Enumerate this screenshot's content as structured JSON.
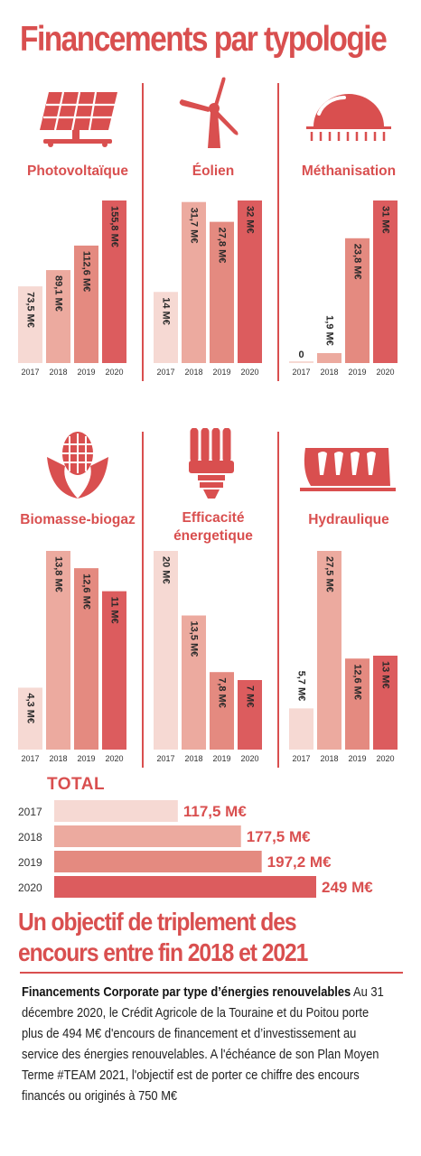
{
  "title": "Financements par typologie",
  "colors": {
    "accent": "#d94f4f",
    "year_colors": [
      "#f6d9d3",
      "#ecaa9f",
      "#e48a80",
      "#dc5c5e"
    ],
    "value_text": "#2a2a2a"
  },
  "panels": [
    {
      "label": "Photovoltaïque",
      "icon": "solar-panel-icon"
    },
    {
      "label": "Éolien",
      "icon": "wind-turbine-icon"
    },
    {
      "label": "Méthanisation",
      "icon": "methanizer-dome-icon"
    },
    {
      "label": "Biomasse-biogaz",
      "icon": "biomass-corn-icon"
    },
    {
      "label": "Efficacité énergetique",
      "icon": "energy-saving-bulb-icon"
    },
    {
      "label": "Hydraulique",
      "icon": "hydraulic-dam-icon"
    }
  ],
  "total": {
    "title": "TOTAL"
  },
  "headline": "Un objectif de triplement des encours entre fin 2018 et 2021",
  "body": {
    "lead": "Financements Corporate par type d’énergies renouvelables",
    "text": " Au 31 décembre 2020, le Crédit Agricole de la Touraine et du Poitou porte plus de 494 M€ d'encours de financement et d’investissement au service des énergies renouvelables.  A l'échéance de son Plan Moyen Terme #TEAM 2021, l'objectif est de porter ce chiffre des encours financés ou originés à 750 M€"
  },
  "chart_data": [
    {
      "type": "bar",
      "title": "Photovoltaïque",
      "categories": [
        "2017",
        "2018",
        "2019",
        "2020"
      ],
      "values": [
        73.5,
        89.1,
        112.6,
        155.8
      ],
      "labels": [
        "73,5 M€",
        "89,1 M€",
        "112,6 M€",
        "155,8 M€"
      ]
    },
    {
      "type": "bar",
      "title": "Éolien",
      "categories": [
        "2017",
        "2018",
        "2019",
        "2020"
      ],
      "values": [
        14,
        31.7,
        27.8,
        32
      ],
      "labels": [
        "14 M€",
        "31,7 M€",
        "27,8 M€",
        "32 M€"
      ]
    },
    {
      "type": "bar",
      "title": "Méthanisation",
      "categories": [
        "2017",
        "2018",
        "2019",
        "2020"
      ],
      "values": [
        0,
        1.9,
        23.8,
        31
      ],
      "labels": [
        "0",
        "1,9 M€",
        "23,8 M€",
        "31 M€"
      ]
    },
    {
      "type": "bar",
      "title": "Biomasse-biogaz",
      "categories": [
        "2017",
        "2018",
        "2019",
        "2020"
      ],
      "values": [
        4.3,
        13.8,
        12.6,
        11
      ],
      "labels": [
        "4,3 M€",
        "13,8 M€",
        "12,6 M€",
        "11 M€"
      ]
    },
    {
      "type": "bar",
      "title": "Efficacité énergetique",
      "categories": [
        "2017",
        "2018",
        "2019",
        "2020"
      ],
      "values": [
        20,
        13.5,
        7.8,
        7
      ],
      "labels": [
        "20 M€",
        "13,5 M€",
        "7,8 M€",
        "7 M€"
      ]
    },
    {
      "type": "bar",
      "title": "Hydraulique",
      "categories": [
        "2017",
        "2018",
        "2019",
        "2020"
      ],
      "values": [
        5.7,
        27.5,
        12.6,
        13
      ],
      "labels": [
        "5,7 M€",
        "27,5 M€",
        "12,6 M€",
        "13 M€"
      ]
    },
    {
      "type": "bar",
      "orientation": "horizontal",
      "title": "TOTAL",
      "categories": [
        "2017",
        "2018",
        "2019",
        "2020"
      ],
      "values": [
        117.5,
        177.5,
        197.2,
        249
      ],
      "labels": [
        "117,5 M€",
        "177,5 M€",
        "197,2 M€",
        "249 M€"
      ]
    }
  ]
}
